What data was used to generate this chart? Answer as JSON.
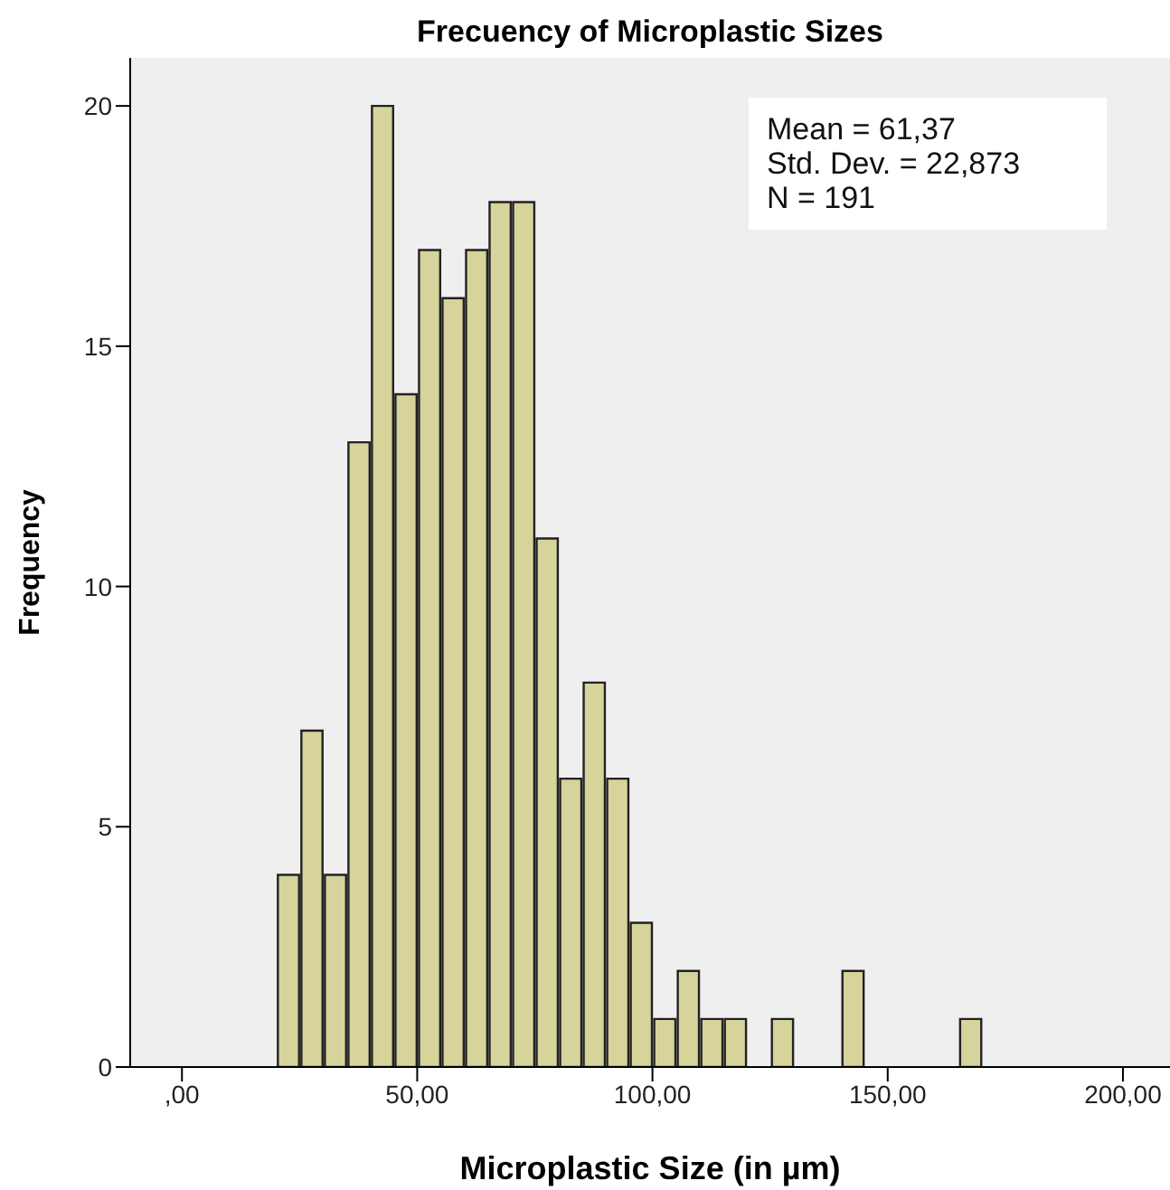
{
  "chart_data": {
    "type": "histogram",
    "title": "Frecuency of Microplastic Sizes",
    "xlabel": "Microplastic Size (in µm)",
    "ylabel": "Frequency",
    "bins": [
      20,
      25,
      30,
      35,
      40,
      45,
      50,
      55,
      60,
      65,
      70,
      75,
      80,
      85,
      90,
      95,
      100,
      105,
      110,
      115,
      120,
      125,
      130,
      135,
      140,
      145,
      150,
      155,
      160,
      165,
      170
    ],
    "values": [
      4,
      7,
      4,
      13,
      20,
      14,
      17,
      16,
      17,
      18,
      18,
      11,
      6,
      8,
      6,
      3,
      1,
      2,
      1,
      1,
      0,
      1,
      0,
      0,
      2,
      0,
      0,
      0,
      0,
      1
    ],
    "color": "#d6d39b",
    "xlim": [
      -11,
      210
    ],
    "xticks": [
      {
        "value": 0,
        "label": ",00"
      },
      {
        "value": 50,
        "label": "50,00"
      },
      {
        "value": 100,
        "label": "100,00"
      },
      {
        "value": 150,
        "label": "150,00"
      },
      {
        "value": 200,
        "label": "200,00"
      }
    ],
    "ylim": [
      0,
      21
    ],
    "yticks": [
      0,
      5,
      10,
      15,
      20
    ],
    "grid": false,
    "annotations": [
      "Mean = 61,37",
      "Std. Dev. = 22,873",
      "N = 191"
    ]
  }
}
